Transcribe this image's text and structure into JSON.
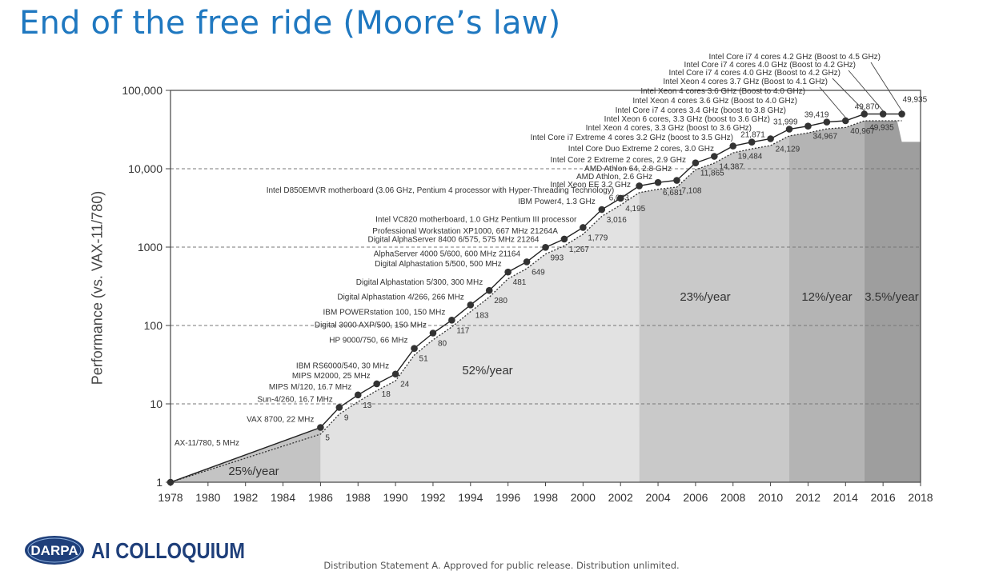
{
  "slide": {
    "title": "End of the free ride (Moore’s law)",
    "footer": "Distribution Statement A. Approved for public release. Distribution unlimited.",
    "logo": {
      "badge": "DARPA",
      "text": "AI COLLOQUIUM"
    }
  },
  "chart_data": {
    "type": "line",
    "title": "",
    "xlabel": "",
    "ylabel": "Performance (vs. VAX-11/780)",
    "xlim": [
      1978,
      2018
    ],
    "ylim": [
      1,
      100000
    ],
    "yscale": "log",
    "grid": "dashed horizontal",
    "x_ticks": [
      "1978",
      "1980",
      "1982",
      "1984",
      "1986",
      "1988",
      "1990",
      "1992",
      "1994",
      "1996",
      "1998",
      "2000",
      "2002",
      "2004",
      "2006",
      "2008",
      "2010",
      "2012",
      "2014",
      "2016",
      "2018"
    ],
    "y_ticks": [
      {
        "value": 1,
        "label": "1"
      },
      {
        "value": 10,
        "label": "10"
      },
      {
        "value": 100,
        "label": "100"
      },
      {
        "value": 1000,
        "label": "1000"
      },
      {
        "value": 10000,
        "label": "10,000"
      },
      {
        "value": 100000,
        "label": "100,000"
      }
    ],
    "regions": [
      {
        "from": 1978,
        "to": 1986,
        "label": "25%/year",
        "color": "#c4c4c4"
      },
      {
        "from": 1986,
        "to": 2003,
        "label": "52%/year",
        "color": "#e2e2e2"
      },
      {
        "from": 2003,
        "to": 2011,
        "label": "23%/year",
        "color": "#c9c9c9"
      },
      {
        "from": 2011,
        "to": 2015,
        "label": "12%/year",
        "color": "#b4b4b4"
      },
      {
        "from": 2015,
        "to": 2018,
        "label": "3.5%/year",
        "color": "#9e9e9e"
      }
    ],
    "points": [
      {
        "x": 1978,
        "y": 1,
        "value_label": "",
        "name": "AX-11/780, 5 MHz"
      },
      {
        "x": 1986,
        "y": 5,
        "value_label": "5",
        "name": "VAX 8700, 22 MHz"
      },
      {
        "x": 1987,
        "y": 9,
        "value_label": "9",
        "name": "Sun-4/260, 16.7 MHz"
      },
      {
        "x": 1988,
        "y": 13,
        "value_label": "13",
        "name": "MIPS M/120, 16.7 MHz"
      },
      {
        "x": 1989,
        "y": 18,
        "value_label": "18",
        "name": "MIPS M2000, 25 MHz"
      },
      {
        "x": 1990,
        "y": 24,
        "value_label": "24",
        "name": "IBM RS6000/540, 30 MHz"
      },
      {
        "x": 1991,
        "y": 51,
        "value_label": "51",
        "name": "HP 9000/750, 66 MHz"
      },
      {
        "x": 1992,
        "y": 80,
        "value_label": "80",
        "name": "Digital 3000 AXP/500, 150 MHz"
      },
      {
        "x": 1993,
        "y": 117,
        "value_label": "117",
        "name": "IBM POWERstation 100, 150 MHz"
      },
      {
        "x": 1994,
        "y": 183,
        "value_label": "183",
        "name": "Digital Alphastation 4/266, 266 MHz"
      },
      {
        "x": 1995,
        "y": 280,
        "value_label": "280",
        "name": "Digital Alphastation 5/300, 300 MHz"
      },
      {
        "x": 1996,
        "y": 481,
        "value_label": "481",
        "name": "Digital Alphastation 5/500, 500 MHz"
      },
      {
        "x": 1997,
        "y": 649,
        "value_label": "649",
        "name": "AlphaServer 4000 5/600, 600 MHz 21164"
      },
      {
        "x": 1998,
        "y": 993,
        "value_label": "993",
        "name": "Digital AlphaServer 8400 6/575, 575 MHz 21264"
      },
      {
        "x": 1999,
        "y": 1267,
        "value_label": "1,267",
        "name": "Professional Workstation XP1000, 667 MHz 21264A"
      },
      {
        "x": 2000,
        "y": 1779,
        "value_label": "1,779",
        "name": "Intel VC820 motherboard, 1.0 GHz Pentium III processor"
      },
      {
        "x": 2001,
        "y": 3016,
        "value_label": "3,016",
        "name": "IBM Power4, 1.3 GHz"
      },
      {
        "x": 2002,
        "y": 4195,
        "value_label": "4,195",
        "name": "Intel D850EMVR motherboard (3.06 GHz, Pentium 4 processor with Hyper-Threading Technology)"
      },
      {
        "x": 2003,
        "y": 6043,
        "value_label": "6,043",
        "name": "Intel Xeon EE 3.2 GHz"
      },
      {
        "x": 2004,
        "y": 6681,
        "value_label": "6,681",
        "name": "AMD Athlon, 2.6 GHz"
      },
      {
        "x": 2005,
        "y": 7108,
        "value_label": "7,108",
        "name": "AMD Athlon 64, 2.8 GHz"
      },
      {
        "x": 2006,
        "y": 11865,
        "value_label": "11,865",
        "name": "Intel Core 2 Extreme 2 cores, 2.9 GHz"
      },
      {
        "x": 2007,
        "y": 14387,
        "value_label": "14,387",
        "name": "Intel Core Duo Extreme 2 cores, 3.0 GHz"
      },
      {
        "x": 2008,
        "y": 19484,
        "value_label": "19,484",
        "name": "Intel Core i7 Extreme 4 cores 3.2 GHz (boost to 3.5 GHz)"
      },
      {
        "x": 2009,
        "y": 21871,
        "value_label": "21,871",
        "name": "Intel Xeon 4 cores, 3.3 GHz (boost to 3.6 GHz)"
      },
      {
        "x": 2010,
        "y": 24129,
        "value_label": "24,129",
        "name": "Intel Xeon 6 cores, 3.3 GHz (boost to 3.6 GHz)"
      },
      {
        "x": 2011,
        "y": 31999,
        "value_label": "31,999",
        "name": "Intel Core i7 4 cores 3.4 GHz (boost to 3.8 GHz)"
      },
      {
        "x": 2012,
        "y": 34967,
        "value_label": "34,967",
        "name": "Intel Xeon 4 cores 3.6 GHz (Boost to 4.0 GHz)"
      },
      {
        "x": 2013,
        "y": 39419,
        "value_label": "39,419",
        "name": "Intel Xeon 4 cores 3.6 GHz (Boost to 4.0 GHz)"
      },
      {
        "x": 2014,
        "y": 40967,
        "value_label": "40,967",
        "name": "Intel Xeon 4 cores 3.7 GHz (Boost to 4.1 GHz)"
      },
      {
        "x": 2015,
        "y": 49870,
        "value_label": "49,870",
        "name": "Intel Core i7 4 cores 4.0 GHz (Boost to 4.2 GHz)"
      },
      {
        "x": 2016,
        "y": 49935,
        "value_label": "49,935",
        "name": "Intel Core i7 4 cores 4.0 GHz (Boost to 4.2 GHz)"
      },
      {
        "x": 2017,
        "y": 49935,
        "value_label": "49,935",
        "name": "Intel Core i7 4 cores 4.2 GHz (Boost to 4.5 GHz)"
      }
    ]
  }
}
